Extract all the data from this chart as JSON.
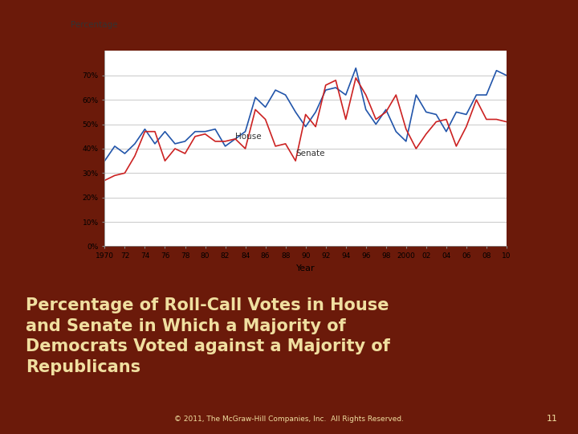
{
  "years": [
    1970,
    1971,
    1972,
    1973,
    1974,
    1975,
    1976,
    1977,
    1978,
    1979,
    1980,
    1981,
    1982,
    1983,
    1984,
    1985,
    1986,
    1987,
    1988,
    1989,
    1990,
    1991,
    1992,
    1993,
    1994,
    1995,
    1996,
    1997,
    1998,
    1999,
    2000,
    2001,
    2002,
    2003,
    2004,
    2005,
    2006,
    2007,
    2008,
    2009,
    2010
  ],
  "house": [
    35,
    41,
    38,
    42,
    48,
    42,
    47,
    42,
    43,
    47,
    47,
    48,
    41,
    44,
    47,
    61,
    57,
    64,
    62,
    55,
    49,
    55,
    64,
    65,
    62,
    73,
    56,
    50,
    56,
    47,
    43,
    62,
    55,
    54,
    47,
    55,
    54,
    62,
    62,
    72,
    70
  ],
  "senate": [
    27,
    29,
    30,
    37,
    47,
    47,
    35,
    40,
    38,
    45,
    46,
    43,
    43,
    44,
    40,
    56,
    52,
    41,
    42,
    35,
    54,
    49,
    66,
    68,
    52,
    69,
    62,
    52,
    55,
    62,
    48,
    40,
    46,
    51,
    52,
    41,
    49,
    60,
    52,
    52,
    51
  ],
  "xlabel": "Year",
  "ylabel_text": "Percentage",
  "xlim": [
    1970,
    2010
  ],
  "ylim": [
    0,
    80
  ],
  "yticks": [
    0,
    10,
    20,
    30,
    40,
    50,
    60,
    70
  ],
  "xtick_labels": [
    "1970",
    "72",
    "74",
    "76",
    "78",
    "80",
    "82",
    "84",
    "86",
    "88",
    "90",
    "92",
    "94",
    "96",
    "98",
    "2000",
    "02",
    "04",
    "06",
    "08",
    "10"
  ],
  "xtick_values": [
    1970,
    1972,
    1974,
    1976,
    1978,
    1980,
    1982,
    1984,
    1986,
    1988,
    1990,
    1992,
    1994,
    1996,
    1998,
    2000,
    2002,
    2004,
    2006,
    2008,
    2010
  ],
  "house_color": "#2255aa",
  "senate_color": "#cc2222",
  "background_slide": "#6b1a0a",
  "chart_bg": "#ffffff",
  "text_color": "#333333",
  "title_text": "Percentage of Roll-Call Votes in House\nand Senate in Which a Majority of\nDemocrats Voted against a Majority of\nRepublicans",
  "title_color": "#f0dfa0",
  "footer_text": "© 2011, The McGraw-Hill Companies, Inc.  All Rights Reserved.",
  "page_num": "11",
  "house_label_year": 1983,
  "house_label_pct": 44,
  "senate_label_year": 1989,
  "senate_label_pct": 37
}
